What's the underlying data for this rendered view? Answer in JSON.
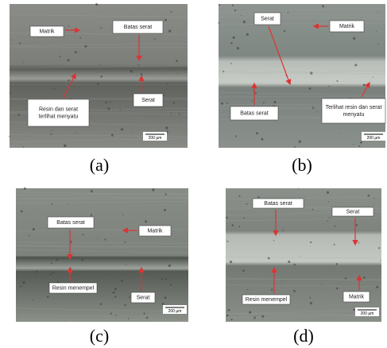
{
  "panels": [
    {
      "caption": "(a)",
      "scale": "200 µm",
      "labels": [
        [
          "Matrik"
        ],
        [
          "Batas serat"
        ],
        [
          "Resin dan serat",
          "terlihat menyatu"
        ],
        [
          "Serat"
        ]
      ]
    },
    {
      "caption": "(b)",
      "scale": "200 µm",
      "labels": [
        [
          "Serat"
        ],
        [
          "Matrik"
        ],
        [
          "Batas serat"
        ],
        [
          "Terlihat resin dan serat",
          "menyatu"
        ]
      ]
    },
    {
      "caption": "(c)",
      "scale": "200 µm",
      "labels": [
        [
          "Batas serat"
        ],
        [
          "Matrik"
        ],
        [
          "Resin menempel"
        ],
        [
          "Serat"
        ]
      ]
    },
    {
      "caption": "(d)",
      "scale": "200 µm",
      "labels": [
        [
          "Batas serat"
        ],
        [
          "Serat"
        ],
        [
          "Resin menempel"
        ],
        [
          "Matrik"
        ]
      ]
    }
  ]
}
